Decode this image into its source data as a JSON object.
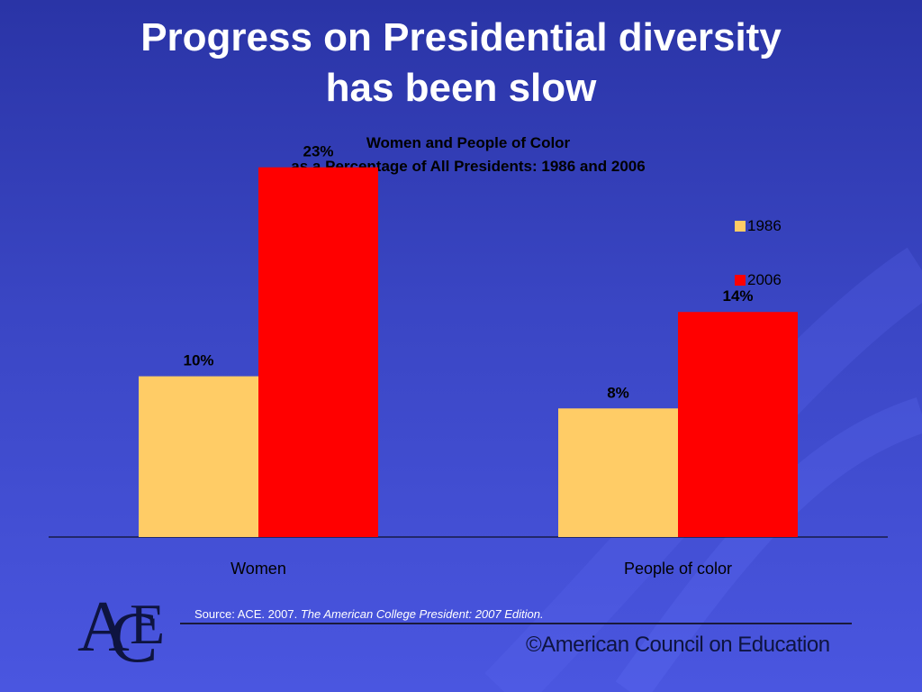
{
  "title_line1": "Progress on Presidential diversity",
  "title_line2": "has been slow",
  "source_prefix": "Source:  ACE. 2007.",
  "source_italic": "The American College President:  2007 Edition.",
  "copyright": "©American Council on Education",
  "logo_text": "ACE",
  "colors": {
    "series_1986": "#ffcc66",
    "series_2006": "#ff0000",
    "background": "#3a46c4"
  },
  "chart_data": {
    "type": "bar",
    "title": "Women and People of Color",
    "subtitle": "as a Percentage of All Presidents:  1986 and 2006",
    "categories": [
      "Women",
      "People of color"
    ],
    "series": [
      {
        "name": "1986",
        "values": [
          10,
          8
        ],
        "labels": [
          "10%",
          "8%"
        ],
        "color": "#ffcc66"
      },
      {
        "name": "2006",
        "values": [
          23,
          14
        ],
        "labels": [
          "23%",
          "14%"
        ],
        "color": "#ff0000"
      }
    ],
    "ylim": [
      0,
      25
    ],
    "grid": false,
    "legend": "top-right"
  }
}
